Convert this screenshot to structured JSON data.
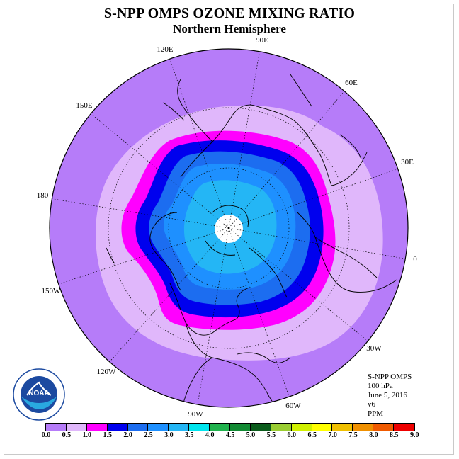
{
  "title": "S-NPP OMPS OZONE MIXING RATIO",
  "subtitle": "Northern Hemisphere",
  "lon_labels": [
    "90E",
    "60E",
    "30E",
    "0",
    "30W",
    "60W",
    "90W",
    "120W",
    "150W",
    "180",
    "150E",
    "120E"
  ],
  "info": {
    "instrument": "S-NPP OMPS",
    "level": "100 hPa",
    "date": "June 5, 2016",
    "version": "v6",
    "units": "PPM"
  },
  "logo": {
    "text": "NOAA",
    "ring_text_top": "NATIONAL OCEANIC AND ATMOSPHERIC ADMINISTRATION",
    "ring_text_bottom": "U.S. DEPARTMENT OF COMMERCE"
  },
  "colorbar": {
    "ticks": [
      "0.0",
      "0.5",
      "1.0",
      "1.5",
      "2.0",
      "2.5",
      "3.0",
      "3.5",
      "4.0",
      "4.5",
      "5.0",
      "5.5",
      "6.0",
      "6.5",
      "7.0",
      "7.5",
      "8.0",
      "8.5",
      "9.0"
    ],
    "colors": [
      "#b67cf9",
      "#e0b7fb",
      "#ff00ff",
      "#0000ee",
      "#1c6df0",
      "#1e90ff",
      "#24b6f5",
      "#00e5ee",
      "#20b24d",
      "#128a33",
      "#0b5c1c",
      "#9acd32",
      "#d0f000",
      "#ffff00",
      "#f0c000",
      "#f09000",
      "#f05a00",
      "#ee0000",
      "#8b5a3c"
    ]
  },
  "map_colors": {
    "band_0_0_5": "#b67cf9",
    "band_0_5_1_0": "#e0b7fb",
    "band_1_0_1_5": "#ff00ff",
    "band_1_5_2_0": "#0000ee",
    "band_2_0_2_5": "#1c6df0",
    "band_2_5_3_0": "#1e90ff",
    "band_3_0_3_5": "#24b6f5",
    "no_data": "#ffffff"
  }
}
